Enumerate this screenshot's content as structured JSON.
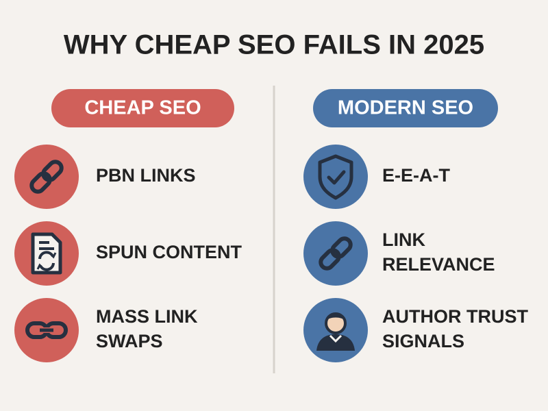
{
  "header": {
    "title": "WHY CHEAP SEO FAILS IN 2025"
  },
  "columns": [
    {
      "heading": "CHEAP SEO",
      "items": [
        {
          "lines": [
            "PBN LINKS"
          ]
        },
        {
          "lines": [
            "SPUN CONTENT"
          ]
        },
        {
          "lines": [
            "MASS LINK",
            "SWAPS"
          ]
        }
      ]
    },
    {
      "heading": "MODERN SEO",
      "items": [
        {
          "lines": [
            "E-E-A-T"
          ]
        },
        {
          "lines": [
            "LINK",
            "RELEVANCE"
          ]
        },
        {
          "lines": [
            "AUTHOR TRUST",
            "SIGNALS"
          ]
        }
      ]
    }
  ]
}
